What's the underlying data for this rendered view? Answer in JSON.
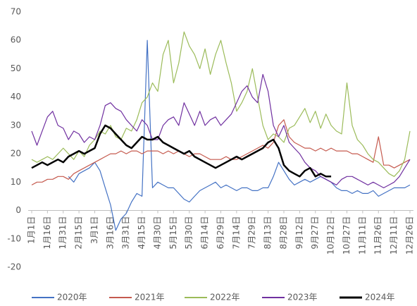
{
  "chart_data": {
    "type": "line",
    "categories": [
      "1月1日",
      null,
      null,
      "1月16日",
      null,
      null,
      "1月31日",
      null,
      null,
      "2月15日",
      null,
      null,
      "3月1日",
      null,
      null,
      "3月16日",
      null,
      null,
      "3月31日",
      null,
      null,
      "4月15日",
      null,
      null,
      "4月30日",
      null,
      null,
      "5月15日",
      null,
      null,
      "5月30日",
      null,
      null,
      "6月14日",
      null,
      null,
      "6月29日",
      null,
      null,
      "7月14日",
      null,
      null,
      "7月29日",
      null,
      null,
      "8月13日",
      null,
      null,
      "8月28日",
      null,
      null,
      "9月12日",
      null,
      null,
      "9月27日",
      null,
      null,
      "10月12日",
      null,
      null,
      "10月27日",
      null,
      null,
      "11月11日",
      null,
      null,
      "11月26日",
      null,
      null,
      "12月11日",
      null,
      null,
      "12月26日"
    ],
    "series": [
      {
        "name": "2020年",
        "color": "#4472c4",
        "values": [
          null,
          null,
          null,
          null,
          null,
          null,
          null,
          12,
          10,
          13,
          14,
          15,
          17,
          14,
          8,
          2,
          -7,
          -3,
          -1,
          3,
          6,
          5,
          60,
          8,
          10,
          9,
          8,
          8,
          6,
          4,
          3,
          5,
          7,
          8,
          9,
          10,
          8,
          9,
          8,
          7,
          8,
          8,
          7,
          7,
          8,
          8,
          12,
          17,
          14,
          11,
          9,
          10,
          11,
          10,
          11,
          12,
          11,
          10,
          8,
          7,
          7,
          6,
          7,
          6,
          6,
          7,
          5,
          6,
          7,
          8,
          8,
          8,
          9
        ]
      },
      {
        "name": "2021年",
        "color": "#c55a4e",
        "values": [
          9,
          10,
          10,
          11,
          11,
          12,
          12,
          11,
          13,
          14,
          15,
          16,
          17,
          18,
          19,
          20,
          20,
          21,
          20,
          21,
          21,
          20,
          21,
          21,
          21,
          20,
          21,
          20,
          21,
          20,
          19,
          20,
          20,
          19,
          18,
          18,
          18,
          19,
          18,
          18,
          19,
          20,
          21,
          22,
          23,
          22,
          24,
          30,
          32,
          26,
          24,
          23,
          22,
          22,
          21,
          22,
          21,
          22,
          21,
          21,
          21,
          20,
          20,
          19,
          18,
          17,
          26,
          16,
          16,
          15,
          16,
          17,
          18
        ]
      },
      {
        "name": "2022年",
        "color": "#9bbb59",
        "values": [
          18,
          17,
          18,
          19,
          18,
          20,
          22,
          20,
          18,
          21,
          19,
          23,
          25,
          28,
          27,
          30,
          26,
          25,
          29,
          28,
          32,
          38,
          40,
          45,
          42,
          55,
          60,
          45,
          52,
          63,
          58,
          55,
          50,
          57,
          48,
          55,
          60,
          52,
          45,
          35,
          38,
          42,
          50,
          40,
          30,
          25,
          27,
          26,
          24,
          29,
          30,
          33,
          36,
          31,
          35,
          29,
          34,
          30,
          28,
          27,
          45,
          30,
          25,
          23,
          20,
          18,
          17,
          15,
          13,
          12,
          14,
          18,
          28
        ]
      },
      {
        "name": "2023年",
        "color": "#7030a0",
        "values": [
          28,
          23,
          28,
          33,
          35,
          30,
          29,
          25,
          28,
          27,
          24,
          26,
          25,
          30,
          37,
          38,
          36,
          35,
          32,
          30,
          28,
          32,
          30,
          25,
          25,
          30,
          32,
          33,
          30,
          38,
          34,
          30,
          35,
          30,
          32,
          33,
          30,
          32,
          34,
          38,
          42,
          44,
          40,
          38,
          48,
          42,
          30,
          26,
          30,
          24,
          22,
          20,
          17,
          15,
          14,
          12,
          11,
          10,
          9,
          11,
          12,
          12,
          11,
          10,
          9,
          10,
          9,
          8,
          9,
          10,
          12,
          15,
          18
        ]
      },
      {
        "name": "2024年",
        "color": "#000000",
        "values": [
          15,
          16,
          17,
          16,
          17,
          18,
          17,
          19,
          20,
          21,
          20,
          21,
          22,
          27,
          30,
          29,
          27,
          25,
          23,
          22,
          24,
          26,
          25,
          25,
          26,
          24,
          23,
          22,
          21,
          20,
          21,
          19,
          18,
          17,
          16,
          15,
          16,
          17,
          18,
          19,
          18,
          19,
          20,
          21,
          22,
          24,
          25,
          22,
          16,
          14,
          13,
          12,
          14,
          15,
          12,
          13,
          12,
          12,
          null,
          null,
          null,
          null,
          null,
          null,
          null,
          null,
          null,
          null,
          null,
          null,
          null,
          null,
          null
        ]
      }
    ],
    "ylim": [
      -20,
      70
    ],
    "yticks": [
      -20,
      -10,
      0,
      10,
      20,
      30,
      40,
      50,
      60,
      70
    ],
    "grid": false,
    "legend": "bottom"
  }
}
